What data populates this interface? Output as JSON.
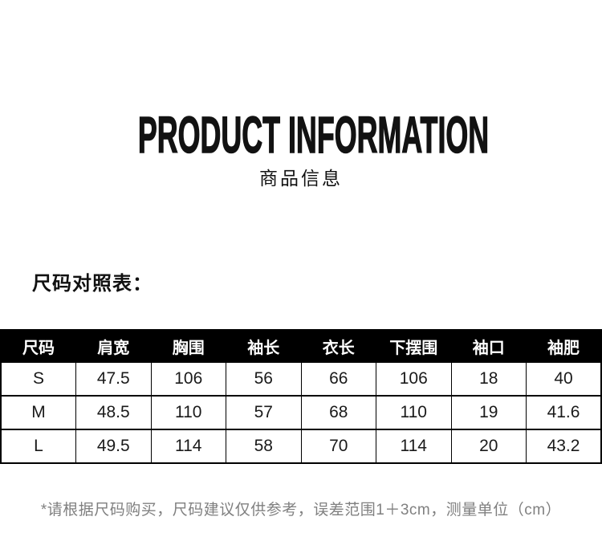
{
  "header": {
    "title": "PRODUCT INFORMATION",
    "subtitle": "商品信息"
  },
  "size_chart": {
    "heading": "尺码对照表：",
    "columns": [
      "尺码",
      "肩宽",
      "胸围",
      "袖长",
      "衣长",
      "下摆围",
      "袖口",
      "袖肥"
    ],
    "rows": [
      [
        "S",
        "47.5",
        "106",
        "56",
        "66",
        "106",
        "18",
        "40"
      ],
      [
        "M",
        "48.5",
        "110",
        "57",
        "68",
        "110",
        "19",
        "41.6"
      ],
      [
        "L",
        "49.5",
        "114",
        "58",
        "70",
        "114",
        "20",
        "43.2"
      ]
    ],
    "footnote": "*请根据尺码购买，尺码建议仅供参考，误差范围1＋3cm，测量单位（cm）"
  },
  "colors": {
    "table_header_bg": "#000000",
    "table_header_text": "#ffffff",
    "body_text": "#111111",
    "footnote_text": "#808080",
    "page_bg": "#ffffff"
  }
}
